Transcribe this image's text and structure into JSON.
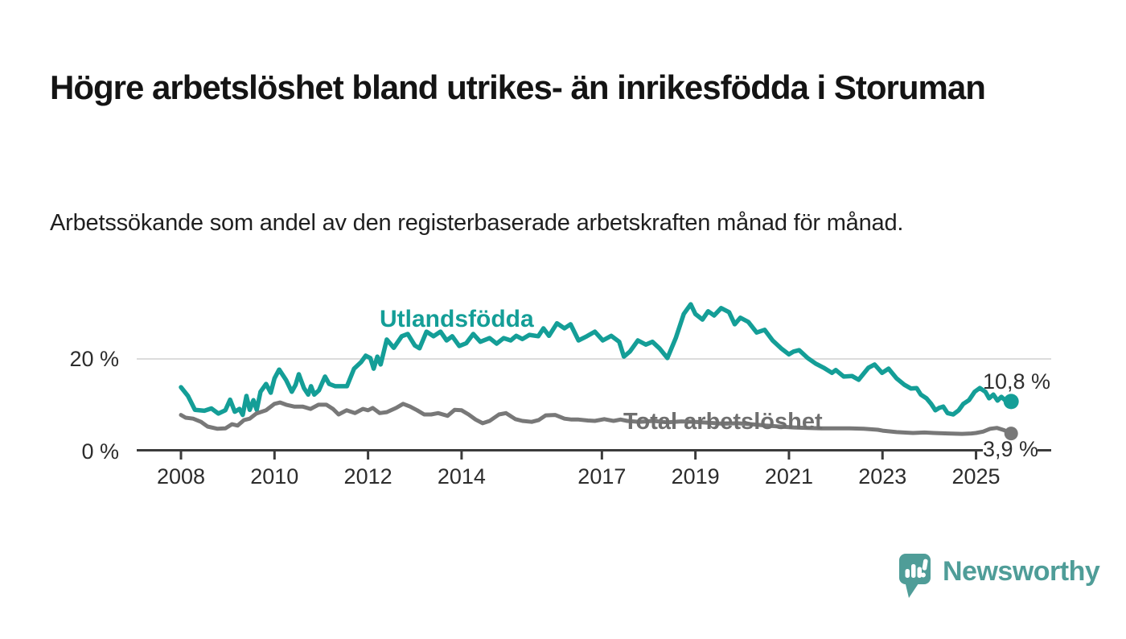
{
  "header": {
    "title": "Högre arbetslöshet bland utrikes- än inrikesfödda i Storuman",
    "subtitle": "Arbetssökande som andel av den registerbaserade arbetskraften månad för månad."
  },
  "branding": {
    "logo_text": "Newsworthy",
    "logo_icon": "newsworthy-speech-bubble-bar-chart-icon",
    "logo_color": "#4f9d98"
  },
  "chart_data": {
    "type": "line",
    "title": "Högre arbetslöshet bland utrikes- än inrikesfödda i Storuman",
    "ylabel": "",
    "xlabel": "",
    "unit": "percent",
    "ylim": [
      0,
      34
    ],
    "grid": "y-gridline-at-20-only",
    "legend_position": "inline-labels-on-chart",
    "x_axis": {
      "ticks": [
        2008,
        2010,
        2012,
        2014,
        2017,
        2019,
        2021,
        2023,
        2025
      ],
      "labels": [
        "2008",
        "2010",
        "2012",
        "2014",
        "2017",
        "2019",
        "2021",
        "2023",
        "2025"
      ]
    },
    "y_axis": {
      "ticks": [
        {
          "value": 20,
          "label": "20 %"
        },
        {
          "value": 0,
          "label": "0 %"
        }
      ]
    },
    "axis_color": "#3b3b3b",
    "gridline_color": "#dcdcdc",
    "series": [
      {
        "name": "Utlandsfödda",
        "color": "#149e97",
        "label_color": "#149e97",
        "end_label": "10,8 %",
        "end_value": 10.8,
        "points": [
          [
            2008.0,
            13.9
          ],
          [
            2008.15,
            12.0
          ],
          [
            2008.3,
            9.0
          ],
          [
            2008.5,
            8.8
          ],
          [
            2008.65,
            9.3
          ],
          [
            2008.8,
            8.2
          ],
          [
            2008.95,
            8.9
          ],
          [
            2009.05,
            11.2
          ],
          [
            2009.15,
            8.6
          ],
          [
            2009.25,
            9.2
          ],
          [
            2009.32,
            7.9
          ],
          [
            2009.4,
            12.0
          ],
          [
            2009.47,
            9.0
          ],
          [
            2009.55,
            11.1
          ],
          [
            2009.62,
            9.0
          ],
          [
            2009.7,
            12.9
          ],
          [
            2009.82,
            14.6
          ],
          [
            2009.92,
            12.7
          ],
          [
            2010.0,
            15.8
          ],
          [
            2010.1,
            17.7
          ],
          [
            2010.25,
            15.4
          ],
          [
            2010.37,
            12.9
          ],
          [
            2010.45,
            14.4
          ],
          [
            2010.52,
            16.7
          ],
          [
            2010.63,
            13.7
          ],
          [
            2010.72,
            12.3
          ],
          [
            2010.78,
            14.1
          ],
          [
            2010.85,
            12.3
          ],
          [
            2010.95,
            13.2
          ],
          [
            2011.08,
            16.2
          ],
          [
            2011.17,
            14.6
          ],
          [
            2011.3,
            14.1
          ],
          [
            2011.55,
            14.1
          ],
          [
            2011.7,
            17.9
          ],
          [
            2011.85,
            19.3
          ],
          [
            2011.95,
            20.7
          ],
          [
            2012.05,
            20.2
          ],
          [
            2012.12,
            17.9
          ],
          [
            2012.2,
            20.5
          ],
          [
            2012.27,
            18.8
          ],
          [
            2012.4,
            24.2
          ],
          [
            2012.55,
            22.4
          ],
          [
            2012.72,
            24.9
          ],
          [
            2012.85,
            25.4
          ],
          [
            2013.0,
            22.9
          ],
          [
            2013.1,
            22.3
          ],
          [
            2013.25,
            25.9
          ],
          [
            2013.4,
            24.9
          ],
          [
            2013.55,
            25.9
          ],
          [
            2013.68,
            24.0
          ],
          [
            2013.8,
            24.9
          ],
          [
            2013.95,
            22.8
          ],
          [
            2014.1,
            23.4
          ],
          [
            2014.25,
            25.4
          ],
          [
            2014.4,
            23.7
          ],
          [
            2014.6,
            24.5
          ],
          [
            2014.75,
            23.3
          ],
          [
            2014.9,
            24.5
          ],
          [
            2015.05,
            24.0
          ],
          [
            2015.17,
            25.0
          ],
          [
            2015.3,
            24.3
          ],
          [
            2015.45,
            25.2
          ],
          [
            2015.64,
            24.9
          ],
          [
            2015.75,
            26.6
          ],
          [
            2015.87,
            25.0
          ],
          [
            2016.04,
            27.7
          ],
          [
            2016.2,
            26.6
          ],
          [
            2016.33,
            27.5
          ],
          [
            2016.5,
            24.0
          ],
          [
            2016.68,
            24.9
          ],
          [
            2016.85,
            25.9
          ],
          [
            2017.02,
            24.0
          ],
          [
            2017.2,
            25.0
          ],
          [
            2017.37,
            23.7
          ],
          [
            2017.47,
            20.5
          ],
          [
            2017.6,
            21.6
          ],
          [
            2017.77,
            24.0
          ],
          [
            2017.94,
            23.1
          ],
          [
            2018.08,
            23.7
          ],
          [
            2018.23,
            22.3
          ],
          [
            2018.4,
            20.2
          ],
          [
            2018.58,
            24.5
          ],
          [
            2018.75,
            29.7
          ],
          [
            2018.9,
            31.8
          ],
          [
            2019.0,
            29.7
          ],
          [
            2019.15,
            28.5
          ],
          [
            2019.27,
            30.3
          ],
          [
            2019.4,
            29.4
          ],
          [
            2019.55,
            31.0
          ],
          [
            2019.72,
            30.1
          ],
          [
            2019.84,
            27.5
          ],
          [
            2019.96,
            28.9
          ],
          [
            2020.13,
            28.0
          ],
          [
            2020.31,
            25.7
          ],
          [
            2020.48,
            26.3
          ],
          [
            2020.65,
            24.0
          ],
          [
            2020.83,
            22.3
          ],
          [
            2021.0,
            21.0
          ],
          [
            2021.1,
            21.6
          ],
          [
            2021.22,
            21.9
          ],
          [
            2021.4,
            20.2
          ],
          [
            2021.57,
            19.0
          ],
          [
            2021.74,
            18.1
          ],
          [
            2021.92,
            17.0
          ],
          [
            2022.0,
            17.6
          ],
          [
            2022.17,
            16.2
          ],
          [
            2022.35,
            16.3
          ],
          [
            2022.49,
            15.5
          ],
          [
            2022.7,
            18.1
          ],
          [
            2022.83,
            18.8
          ],
          [
            2022.99,
            17.0
          ],
          [
            2023.13,
            17.9
          ],
          [
            2023.3,
            15.8
          ],
          [
            2023.47,
            14.4
          ],
          [
            2023.61,
            13.6
          ],
          [
            2023.73,
            13.7
          ],
          [
            2023.82,
            12.3
          ],
          [
            2023.94,
            11.5
          ],
          [
            2024.04,
            10.3
          ],
          [
            2024.13,
            8.9
          ],
          [
            2024.21,
            9.4
          ],
          [
            2024.3,
            9.7
          ],
          [
            2024.39,
            8.3
          ],
          [
            2024.51,
            8.0
          ],
          [
            2024.63,
            8.9
          ],
          [
            2024.73,
            10.3
          ],
          [
            2024.85,
            11.1
          ],
          [
            2024.97,
            12.9
          ],
          [
            2025.08,
            13.7
          ],
          [
            2025.2,
            12.9
          ],
          [
            2025.28,
            11.5
          ],
          [
            2025.37,
            12.3
          ],
          [
            2025.46,
            11.0
          ],
          [
            2025.54,
            11.8
          ],
          [
            2025.63,
            11.0
          ],
          [
            2025.75,
            10.8
          ]
        ]
      },
      {
        "name": "Total arbetslöshet",
        "color": "#787878",
        "label_color": "#6f6f6f",
        "end_label": "3,9 %",
        "end_value": 3.9,
        "points": [
          [
            2008.0,
            7.9
          ],
          [
            2008.1,
            7.3
          ],
          [
            2008.26,
            7.1
          ],
          [
            2008.43,
            6.4
          ],
          [
            2008.57,
            5.4
          ],
          [
            2008.78,
            4.9
          ],
          [
            2008.95,
            5.0
          ],
          [
            2009.09,
            5.9
          ],
          [
            2009.21,
            5.6
          ],
          [
            2009.35,
            6.8
          ],
          [
            2009.47,
            7.1
          ],
          [
            2009.61,
            8.2
          ],
          [
            2009.82,
            8.9
          ],
          [
            2010.0,
            10.3
          ],
          [
            2010.12,
            10.6
          ],
          [
            2010.25,
            10.1
          ],
          [
            2010.42,
            9.7
          ],
          [
            2010.6,
            9.7
          ],
          [
            2010.77,
            9.2
          ],
          [
            2010.94,
            10.1
          ],
          [
            2011.11,
            10.1
          ],
          [
            2011.25,
            9.2
          ],
          [
            2011.37,
            8.0
          ],
          [
            2011.54,
            8.9
          ],
          [
            2011.72,
            8.3
          ],
          [
            2011.89,
            9.2
          ],
          [
            2012.0,
            8.9
          ],
          [
            2012.1,
            9.4
          ],
          [
            2012.25,
            8.3
          ],
          [
            2012.4,
            8.5
          ],
          [
            2012.6,
            9.4
          ],
          [
            2012.75,
            10.3
          ],
          [
            2012.9,
            9.7
          ],
          [
            2013.05,
            8.9
          ],
          [
            2013.2,
            8.0
          ],
          [
            2013.35,
            8.0
          ],
          [
            2013.5,
            8.3
          ],
          [
            2013.7,
            7.7
          ],
          [
            2013.85,
            9.0
          ],
          [
            2014.0,
            8.9
          ],
          [
            2014.15,
            8.0
          ],
          [
            2014.3,
            6.9
          ],
          [
            2014.45,
            6.1
          ],
          [
            2014.6,
            6.6
          ],
          [
            2014.8,
            8.0
          ],
          [
            2014.95,
            8.3
          ],
          [
            2015.15,
            7.0
          ],
          [
            2015.3,
            6.6
          ],
          [
            2015.5,
            6.4
          ],
          [
            2015.65,
            6.8
          ],
          [
            2015.8,
            7.8
          ],
          [
            2016.0,
            7.9
          ],
          [
            2016.2,
            7.1
          ],
          [
            2016.35,
            6.9
          ],
          [
            2016.5,
            6.9
          ],
          [
            2016.7,
            6.7
          ],
          [
            2016.85,
            6.6
          ],
          [
            2017.05,
            7.0
          ],
          [
            2017.25,
            6.6
          ],
          [
            2017.4,
            6.9
          ],
          [
            2017.54,
            6.6
          ],
          [
            2017.8,
            6.4
          ],
          [
            2018.1,
            6.6
          ],
          [
            2018.4,
            6.3
          ],
          [
            2018.7,
            6.5
          ],
          [
            2019.0,
            6.4
          ],
          [
            2019.3,
            6.2
          ],
          [
            2019.6,
            6.0
          ],
          [
            2019.9,
            6.1
          ],
          [
            2020.2,
            5.9
          ],
          [
            2020.5,
            5.6
          ],
          [
            2020.8,
            5.4
          ],
          [
            2021.1,
            5.2
          ],
          [
            2021.4,
            5.1
          ],
          [
            2021.7,
            5.0
          ],
          [
            2022.0,
            5.0
          ],
          [
            2022.3,
            5.0
          ],
          [
            2022.6,
            4.9
          ],
          [
            2022.9,
            4.7
          ],
          [
            2023.0,
            4.5
          ],
          [
            2023.3,
            4.2
          ],
          [
            2023.65,
            4.0
          ],
          [
            2023.9,
            4.1
          ],
          [
            2024.1,
            4.0
          ],
          [
            2024.4,
            3.9
          ],
          [
            2024.7,
            3.8
          ],
          [
            2024.9,
            3.9
          ],
          [
            2025.0,
            4.0
          ],
          [
            2025.15,
            4.3
          ],
          [
            2025.3,
            4.9
          ],
          [
            2025.45,
            5.1
          ],
          [
            2025.6,
            4.6
          ],
          [
            2025.75,
            3.9
          ]
        ]
      }
    ]
  }
}
